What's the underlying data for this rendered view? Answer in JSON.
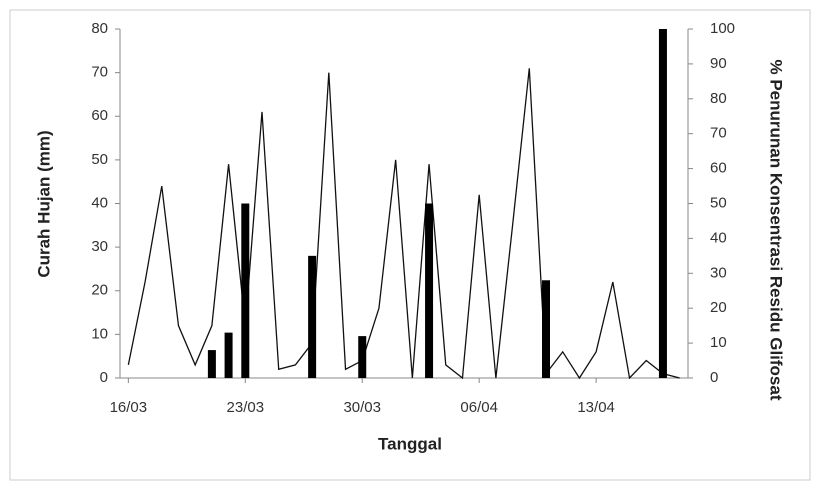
{
  "chart_data": {
    "type": "bar-line",
    "x_label": "Tanggal",
    "y_label": "Curah Hujan (mm)",
    "y2_label": "% Penurunan Konsentrasi Residu Glifosat",
    "categories": [
      "16/03",
      null,
      null,
      null,
      null,
      null,
      null,
      "23/03",
      null,
      null,
      null,
      null,
      null,
      null,
      "30/03",
      null,
      null,
      null,
      null,
      null,
      null,
      "06/04",
      null,
      null,
      null,
      null,
      null,
      null,
      "13/04",
      null,
      null,
      null,
      null,
      null
    ],
    "series": [
      {
        "type": "line",
        "color": "#111111",
        "axis": "y",
        "values": [
          3,
          22,
          44,
          12,
          3,
          12,
          49,
          12,
          61,
          2,
          3,
          8,
          70,
          2,
          4,
          16,
          50,
          0,
          49,
          3,
          0,
          42,
          0,
          35,
          71,
          1,
          6,
          0,
          6,
          22,
          0,
          4,
          1,
          0
        ]
      },
      {
        "type": "bar",
        "color": "#000000",
        "axis": "y2",
        "values": [
          null,
          null,
          null,
          null,
          null,
          8,
          13,
          50,
          null,
          null,
          null,
          35,
          null,
          null,
          12,
          null,
          null,
          null,
          50,
          null,
          null,
          null,
          null,
          null,
          null,
          28,
          null,
          null,
          null,
          null,
          null,
          null,
          100,
          null
        ]
      }
    ],
    "ylim": [
      0,
      80
    ],
    "yticks": [
      0,
      10,
      20,
      30,
      40,
      50,
      60,
      70,
      80
    ],
    "y2lim": [
      0,
      100
    ],
    "y2ticks": [
      0,
      10,
      20,
      30,
      40,
      50,
      60,
      70,
      80,
      90,
      100
    ]
  }
}
